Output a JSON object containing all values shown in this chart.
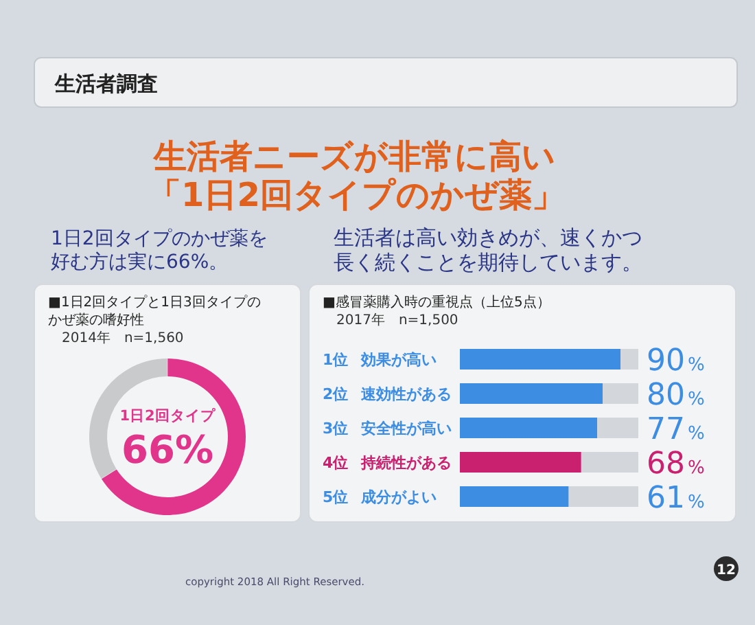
{
  "chart_data": [
    {
      "type": "other",
      "title": "生活者調査",
      "annotations": [
        "生活者ニーズが非常に高い",
        "「1日2回タイプのかぜ薬」",
        "copyright 2018 All Right Reserved.",
        "12"
      ]
    },
    {
      "type": "donut",
      "title": "■1日2回タイプと1日3回タイプのかぜ薬の嗜好性",
      "subtitle": "2014年　n=1,560",
      "annotations": [
        "1日2回タイプのかぜ薬を好む方は実に66%。"
      ],
      "categories": [
        "1日2回タイプ",
        null
      ],
      "values": [
        66,
        34
      ],
      "colors": [
        "#e0358a",
        "#c9cacc"
      ],
      "value_labels": [
        "66%",
        null
      ]
    },
    {
      "type": "bar",
      "orientation": "horizontal",
      "stacked": true,
      "title": "■感冒薬購入時の重視点（上位5点）",
      "subtitle": "2017年　n=1,500",
      "annotations": [
        "生活者は高い効きめが、速くかつ長く続くことを期待しています。"
      ],
      "categories": [
        "1位　効果が高い",
        "2位　速効性がある",
        "3位　安全性が高い",
        "4位　持続性がある",
        "5位　成分がよい"
      ],
      "xlim": [
        0,
        100
      ],
      "tick_labels": "y",
      "series": [
        {
          "colors": [
            "#3d8de3",
            "#3d8de3",
            "#3d8de3",
            "#c9206f",
            "#3d8de3"
          ],
          "values": [
            90,
            80,
            77,
            68,
            61
          ],
          "value_labels": [
            "90%",
            "80%",
            "77%",
            "68%",
            "61%"
          ]
        },
        {
          "color": "#d3d6da",
          "values": [
            10,
            20,
            23,
            32,
            39
          ]
        }
      ]
    }
  ]
}
